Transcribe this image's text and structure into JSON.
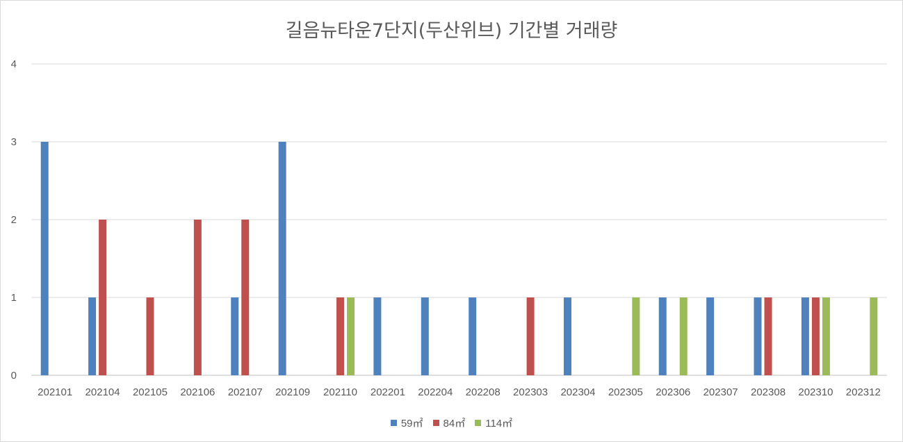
{
  "chart_data": {
    "type": "bar",
    "title": "길음뉴타운7단지(두산위브) 기간별 거래량",
    "categories": [
      "202101",
      "202104",
      "202105",
      "202106",
      "202107",
      "202109",
      "202110",
      "202201",
      "202204",
      "202208",
      "202303",
      "202304",
      "202305",
      "202306",
      "202307",
      "202308",
      "202310",
      "202312"
    ],
    "series": [
      {
        "name": "59㎡",
        "color": "#4f81bd",
        "values": [
          3,
          1,
          0,
          0,
          1,
          3,
          0,
          1,
          1,
          1,
          0,
          1,
          0,
          1,
          1,
          1,
          1,
          0
        ]
      },
      {
        "name": "84㎡",
        "color": "#c0504d",
        "values": [
          0,
          2,
          1,
          2,
          2,
          0,
          1,
          0,
          0,
          0,
          1,
          0,
          0,
          0,
          0,
          1,
          1,
          0
        ]
      },
      {
        "name": "114㎡",
        "color": "#9bbb59",
        "values": [
          0,
          0,
          0,
          0,
          0,
          0,
          1,
          0,
          0,
          0,
          0,
          0,
          1,
          1,
          0,
          0,
          1,
          1
        ]
      }
    ],
    "yticks": [
      "0",
      "1",
      "2",
      "3",
      "4"
    ],
    "ylim": [
      0,
      4
    ],
    "grid": true,
    "legend_position": "bottom"
  }
}
